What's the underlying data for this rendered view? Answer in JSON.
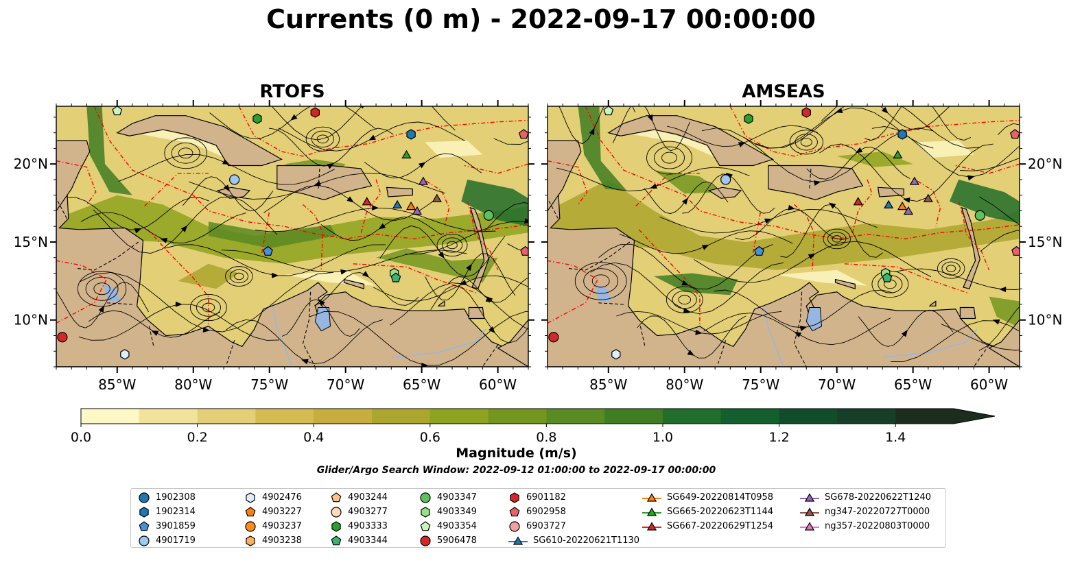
{
  "title": "Currents (0 m) - 2022-09-17 00:00:00",
  "panels": [
    {
      "title": "RTOFS"
    },
    {
      "title": "AMSEAS"
    }
  ],
  "axes": {
    "lon_ticks": [
      "85°W",
      "80°W",
      "75°W",
      "70°W",
      "65°W",
      "60°W"
    ],
    "lon_values": [
      -85,
      -80,
      -75,
      -70,
      -65,
      -60
    ],
    "lat_ticks": [
      "20°N",
      "15°N",
      "10°N"
    ],
    "lat_values": [
      20,
      15,
      10
    ],
    "lon_range": [
      -89,
      -58
    ],
    "lat_range": [
      7,
      23.7
    ]
  },
  "colorbar": {
    "label": "Magnitude (m/s)",
    "ticks": [
      "0.0",
      "0.2",
      "0.4",
      "0.6",
      "0.8",
      "1.0",
      "1.2",
      "1.4"
    ],
    "tick_values": [
      0,
      0.2,
      0.4,
      0.6,
      0.8,
      1.0,
      1.2,
      1.4
    ],
    "range": [
      0,
      1.5
    ],
    "extend": "max",
    "colors": [
      "#fef7c6",
      "#f1e39a",
      "#e3cf75",
      "#d4bb52",
      "#c6ad3d",
      "#aca52e",
      "#8ea31f",
      "#73961f",
      "#5a8a22",
      "#3f7c22",
      "#216d2c",
      "#135f2e",
      "#124d2b",
      "#173f27",
      "#1b2e1e"
    ]
  },
  "search_window": "Glider/Argo Search Window: 2022-09-12 01:00:00 to 2022-09-17 00:00:00",
  "colors": {
    "land": "#d2b48c",
    "lake": "#97b6e1",
    "eez": "#ff0000",
    "border": "#000000",
    "stream": "#000000"
  },
  "legend": [
    {
      "label": "1902308",
      "marker": "circle",
      "color": "#1f77b4"
    },
    {
      "label": "1902314",
      "marker": "hexagon",
      "color": "#1f77b4"
    },
    {
      "label": "3901859",
      "marker": "pentagon",
      "color": "#4a90d9"
    },
    {
      "label": "4901719",
      "marker": "circle",
      "color": "#9ec8ef"
    },
    {
      "label": "4902476",
      "marker": "hexagon",
      "color": "#ddeeff"
    },
    {
      "label": "4903227",
      "marker": "pentagon",
      "color": "#ff7f0e"
    },
    {
      "label": "4903237",
      "marker": "circle",
      "color": "#ff8c1a"
    },
    {
      "label": "4903238",
      "marker": "hexagon",
      "color": "#ffae5c"
    },
    {
      "label": "4903244",
      "marker": "pentagon",
      "color": "#ffc38a"
    },
    {
      "label": "4903277",
      "marker": "circle",
      "color": "#ffdcb8"
    },
    {
      "label": "4903333",
      "marker": "hexagon",
      "color": "#2ca02c"
    },
    {
      "label": "4903344",
      "marker": "pentagon",
      "color": "#3cb371"
    },
    {
      "label": "4903347",
      "marker": "circle",
      "color": "#5cc35c"
    },
    {
      "label": "4903349",
      "marker": "hexagon",
      "color": "#98df8a"
    },
    {
      "label": "4903354",
      "marker": "pentagon",
      "color": "#c9f5c0"
    },
    {
      "label": "5906478",
      "marker": "circle",
      "color": "#d62728"
    },
    {
      "label": "6901182",
      "marker": "hexagon",
      "color": "#d62728"
    },
    {
      "label": "6902958",
      "marker": "pentagon",
      "color": "#e8606a"
    },
    {
      "label": "6903727",
      "marker": "circle",
      "color": "#f4a0a0"
    },
    {
      "label": "SG610-20220621T1130",
      "marker": "triangle",
      "color": "#1f77b4",
      "line": "#1f77b4"
    },
    {
      "label": "SG649-20220814T0958",
      "marker": "triangle",
      "color": "#ff7f0e",
      "line": "#ff7f0e"
    },
    {
      "label": "SG665-20220623T1144",
      "marker": "triangle",
      "color": "#2ca02c",
      "line": "#2ca02c"
    },
    {
      "label": "SG667-20220629T1254",
      "marker": "triangle",
      "color": "#d62728",
      "line": "#d62728"
    },
    {
      "label": "SG678-20220622T1240",
      "marker": "triangle",
      "color": "#9467bd",
      "line": "#9467bd"
    },
    {
      "label": "ng347-20220727T0000",
      "marker": "triangle",
      "color": "#8c564b",
      "line": "#8c564b"
    },
    {
      "label": "ng357-20220803T0000",
      "marker": "triangle",
      "color": "#e377c2",
      "line": "#e377c2"
    }
  ],
  "platforms": [
    {
      "id": "1902314",
      "lon": -65.7,
      "lat": 21.9
    },
    {
      "id": "4901719",
      "lon": -77.3,
      "lat": 19.0
    },
    {
      "id": "3901859",
      "lon": -75.1,
      "lat": 14.4
    },
    {
      "id": "4902476",
      "lon": -84.5,
      "lat": 7.8
    },
    {
      "id": "4903333",
      "lon": -75.8,
      "lat": 22.9
    },
    {
      "id": "4903354",
      "lon": -85.0,
      "lat": 23.4
    },
    {
      "id": "6901182",
      "lon": -72.0,
      "lat": 23.3
    },
    {
      "id": "6902958",
      "lon": -58.3,
      "lat": 21.9
    },
    {
      "id": "6902958",
      "lon": -58.2,
      "lat": 14.4
    },
    {
      "id": "4903347",
      "lon": -60.6,
      "lat": 16.7
    },
    {
      "id": "4903349",
      "lon": -66.8,
      "lat": 13.0
    },
    {
      "id": "4903344",
      "lon": -66.7,
      "lat": 12.7
    },
    {
      "id": "5906478",
      "lon": -88.6,
      "lat": 8.9
    },
    {
      "id": "SG665-20220623T1144",
      "lon": -66.0,
      "lat": 20.6
    },
    {
      "id": "SG678-20220622T1240",
      "lon": -64.9,
      "lat": 18.9
    },
    {
      "id": "SG667-20220629T1254",
      "lon": -68.6,
      "lat": 17.6
    },
    {
      "id": "SG610-20220621T1130",
      "lon": -66.6,
      "lat": 17.4
    },
    {
      "id": "SG649-20220814T0958",
      "lon": -65.7,
      "lat": 17.3
    },
    {
      "id": "ng347-20220727T0000",
      "lon": -64.0,
      "lat": 17.8
    },
    {
      "id": "SG678-20220622T1240",
      "lon": -65.3,
      "lat": 17.0
    }
  ]
}
